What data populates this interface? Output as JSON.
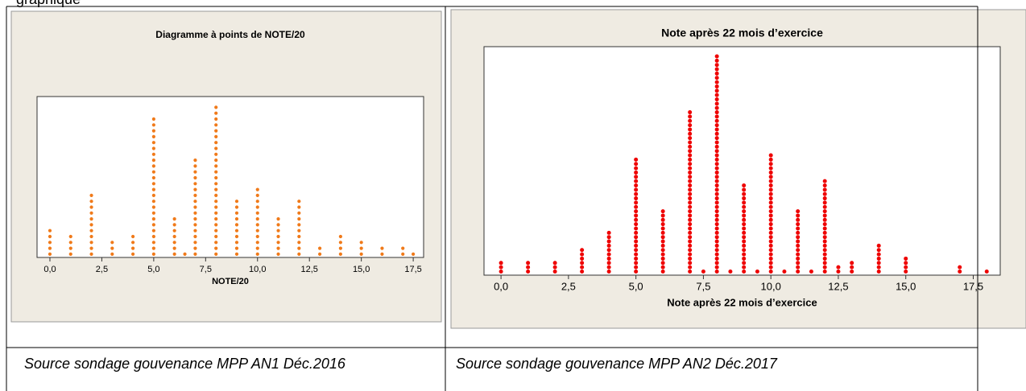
{
  "header": "graphique",
  "chart_data": [
    {
      "type": "dotplot",
      "title": "Diagramme à points de NOTE/20",
      "x_label": "NOTE/20",
      "color": "#f07a1a",
      "x": [
        0,
        1,
        2,
        3,
        4,
        5,
        6,
        6.5,
        7,
        8,
        9,
        10,
        11,
        12,
        13,
        14,
        15,
        16,
        17,
        17.5
      ],
      "values": [
        5,
        4,
        11,
        3,
        4,
        24,
        7,
        1,
        17,
        26,
        10,
        12,
        7,
        10,
        2,
        4,
        3,
        2,
        2,
        1
      ],
      "xlim": [
        -0.62,
        18.0
      ],
      "xticks": [
        {
          "value": 0,
          "label": "0,0"
        },
        {
          "value": 2.5,
          "label": "2,5"
        },
        {
          "value": 5,
          "label": "5,0"
        },
        {
          "value": 7.5,
          "label": "7,5"
        },
        {
          "value": 10,
          "label": "10,0"
        },
        {
          "value": 12.5,
          "label": "12,5"
        },
        {
          "value": 15,
          "label": "15,0"
        },
        {
          "value": 17.5,
          "label": "17,5"
        }
      ]
    },
    {
      "type": "dotplot",
      "title": "Note  après 22 mois d’exercice",
      "x_label": "Note  après 22 mois d’exercice",
      "color": "#ee0000",
      "x": [
        0,
        1,
        2,
        3,
        4,
        5,
        6,
        7,
        7.5,
        8,
        8.5,
        9,
        9.5,
        10,
        10.5,
        11,
        11.5,
        12,
        12.5,
        13,
        14,
        15,
        17,
        18
      ],
      "values": [
        3,
        3,
        3,
        6,
        10,
        27,
        15,
        38,
        1,
        51,
        1,
        21,
        1,
        28,
        1,
        15,
        1,
        22,
        2,
        3,
        7,
        4,
        2,
        1
      ],
      "xlim": [
        -0.63,
        18.5
      ],
      "xticks": [
        {
          "value": 0,
          "label": "0,0"
        },
        {
          "value": 2.5,
          "label": "2,5"
        },
        {
          "value": 5,
          "label": "5,0"
        },
        {
          "value": 7.5,
          "label": "7,5"
        },
        {
          "value": 10,
          "label": "10,0"
        },
        {
          "value": 12.5,
          "label": "12,5"
        },
        {
          "value": 15,
          "label": "15,0"
        },
        {
          "value": 17.5,
          "label": "17,5"
        }
      ]
    }
  ],
  "captions": [
    "Source sondage gouvenance MPP AN1 Déc.2016",
    "Source sondage gouvenance MPP AN2  Déc.2017"
  ]
}
